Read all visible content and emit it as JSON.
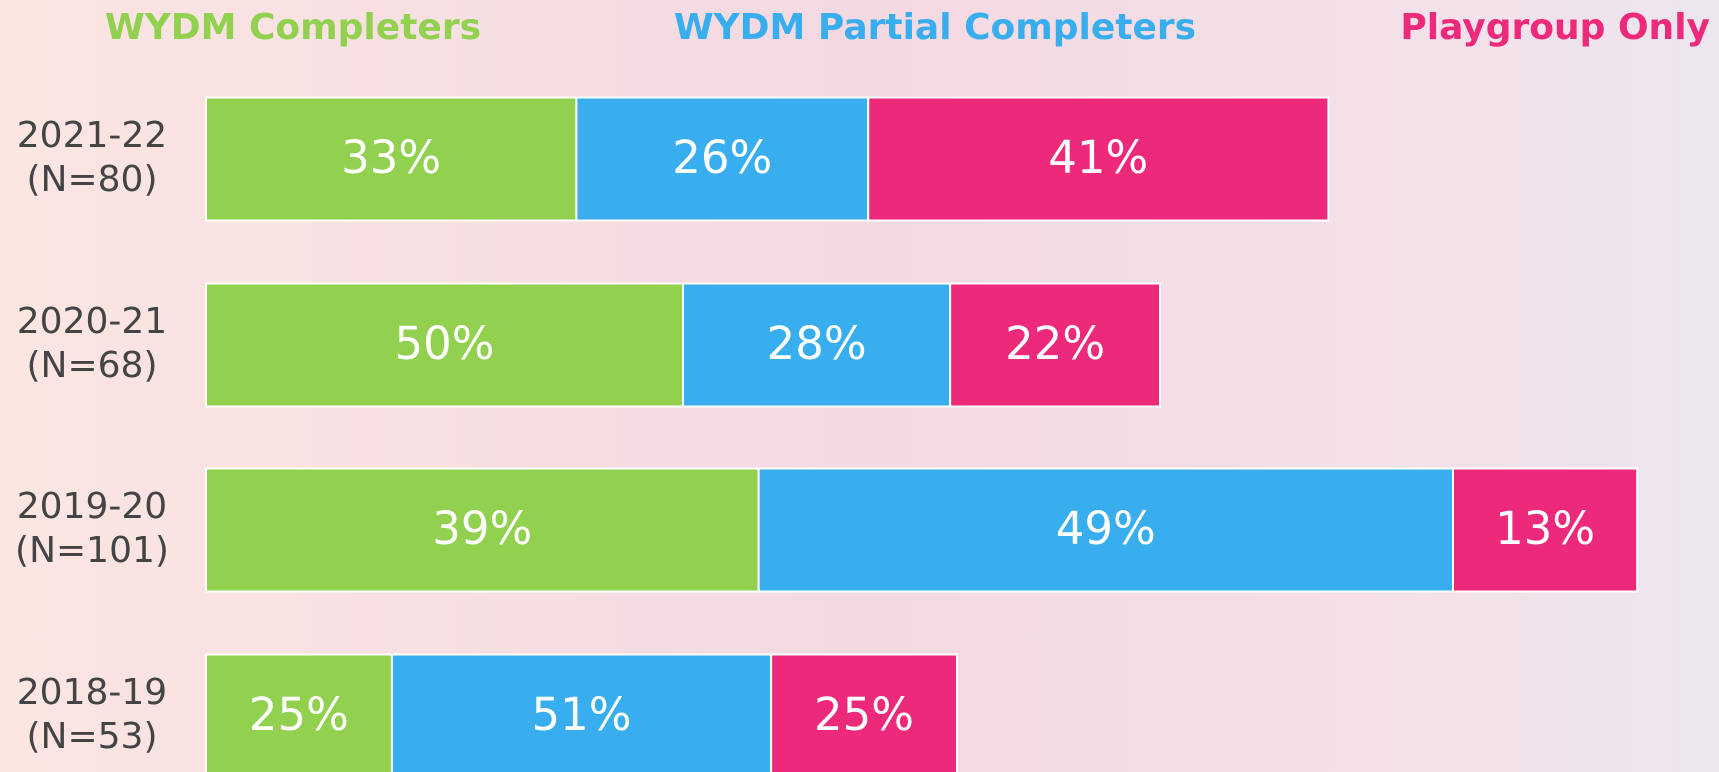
{
  "chart_data": {
    "type": "stacked-bar-horizontal",
    "categories": [
      "2021-22",
      "2020-21",
      "2019-20",
      "2018-19"
    ],
    "n": [
      80,
      68,
      101,
      53
    ],
    "n_labels": [
      "(N=80)",
      "(N=68)",
      "(N=101)",
      "(N=53)"
    ],
    "series": [
      {
        "name": "WYDM Completers",
        "color": "#92d050",
        "values": [
          33,
          50,
          39,
          25
        ],
        "value_labels": [
          "33%",
          "50%",
          "39%",
          "25%"
        ]
      },
      {
        "name": "WYDM Partial Completers",
        "color": "#38aeef",
        "values": [
          26,
          28,
          49,
          51
        ],
        "value_labels": [
          "26%",
          "28%",
          "49%",
          "51%"
        ]
      },
      {
        "name": "Playgroup Only",
        "color": "#ed297b",
        "values": [
          41,
          22,
          13,
          25
        ],
        "value_labels": [
          "41%",
          "22%",
          "13%",
          "25%"
        ]
      }
    ]
  }
}
